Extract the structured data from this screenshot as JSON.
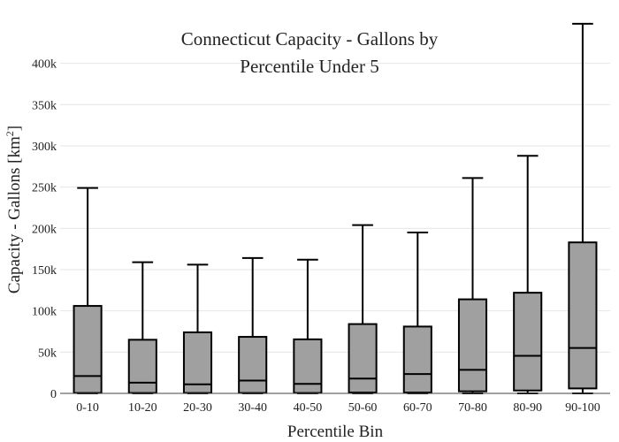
{
  "chart_data": {
    "type": "box",
    "title_lines": [
      "Connecticut Capacity - Gallons by",
      "Percentile Under 5"
    ],
    "xlabel": "Percentile Bin",
    "ylabel_main": "Capacity - Gallons  [km",
    "ylabel_sup": "2",
    "ylabel_close": "]",
    "ylim": [
      0,
      450000
    ],
    "yticks": [
      0,
      50000,
      100000,
      150000,
      200000,
      250000,
      300000,
      350000,
      400000
    ],
    "ytick_labels": [
      "0",
      "50k",
      "100k",
      "150k",
      "200k",
      "250k",
      "300k",
      "350k",
      "400k"
    ],
    "grid": true,
    "box_color": "#a0a0a0",
    "categories": [
      "0-10",
      "10-20",
      "20-30",
      "30-40",
      "40-50",
      "50-60",
      "60-70",
      "70-80",
      "80-90",
      "90-100"
    ],
    "boxes": [
      {
        "min": 0,
        "q1": 500,
        "median": 21000,
        "q3": 106000,
        "max": 249000
      },
      {
        "min": 0,
        "q1": 500,
        "median": 13000,
        "q3": 65000,
        "max": 159000
      },
      {
        "min": 0,
        "q1": 500,
        "median": 11000,
        "q3": 74000,
        "max": 156000
      },
      {
        "min": 0,
        "q1": 500,
        "median": 15500,
        "q3": 68500,
        "max": 164000
      },
      {
        "min": 0,
        "q1": 500,
        "median": 11500,
        "q3": 65500,
        "max": 162000
      },
      {
        "min": 0,
        "q1": 1000,
        "median": 18000,
        "q3": 84000,
        "max": 204000
      },
      {
        "min": 0,
        "q1": 1000,
        "median": 23500,
        "q3": 81000,
        "max": 195000
      },
      {
        "min": 0,
        "q1": 2500,
        "median": 28500,
        "q3": 114000,
        "max": 261000
      },
      {
        "min": 0,
        "q1": 3500,
        "median": 45500,
        "q3": 122000,
        "max": 288000
      },
      {
        "min": 0,
        "q1": 6000,
        "median": 55000,
        "q3": 183000,
        "max": 448000
      }
    ]
  }
}
